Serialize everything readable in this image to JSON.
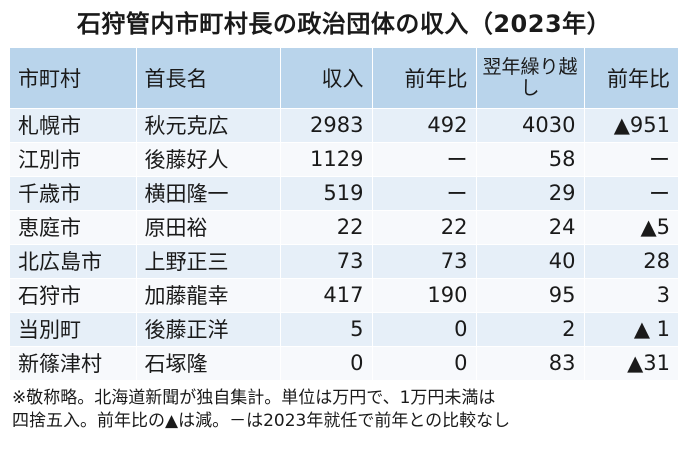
{
  "title": "石狩管内市町村長の政治団体の収入（2023年）",
  "headers": {
    "municipality": "市町村",
    "mayor": "首長名",
    "income": "収入",
    "income_yoy": "前年比",
    "carryover": "翌年繰り越し",
    "carryover_yoy": "前年比"
  },
  "rows": [
    {
      "municipality": "札幌市",
      "mayor": "秋元克広",
      "income": "2983",
      "income_yoy": "492",
      "carryover": "4030",
      "carryover_yoy": "▲951"
    },
    {
      "municipality": "江別市",
      "mayor": "後藤好人",
      "income": "1129",
      "income_yoy": "ー",
      "carryover": "58",
      "carryover_yoy": "ー"
    },
    {
      "municipality": "千歳市",
      "mayor": "横田隆一",
      "income": "519",
      "income_yoy": "ー",
      "carryover": "29",
      "carryover_yoy": "ー"
    },
    {
      "municipality": "恵庭市",
      "mayor": "原田裕",
      "income": "22",
      "income_yoy": "22",
      "carryover": "24",
      "carryover_yoy": "▲5"
    },
    {
      "municipality": "北広島市",
      "mayor": "上野正三",
      "income": "73",
      "income_yoy": "73",
      "carryover": "40",
      "carryover_yoy": "28"
    },
    {
      "municipality": "石狩市",
      "mayor": "加藤龍幸",
      "income": "417",
      "income_yoy": "190",
      "carryover": "95",
      "carryover_yoy": "3"
    },
    {
      "municipality": "当別町",
      "mayor": "後藤正洋",
      "income": "5",
      "income_yoy": "0",
      "carryover": "2",
      "carryover_yoy": "▲ 1"
    },
    {
      "municipality": "新篠津村",
      "mayor": "石塚隆",
      "income": "0",
      "income_yoy": "0",
      "carryover": "83",
      "carryover_yoy": "▲31"
    }
  ],
  "note": {
    "line1": "※敬称略。北海道新聞が独自集計。単位は万円で、1万円未満は",
    "line2": "四捨五入。前年比の▲は減。－は2023年就任で前年との比較なし"
  }
}
